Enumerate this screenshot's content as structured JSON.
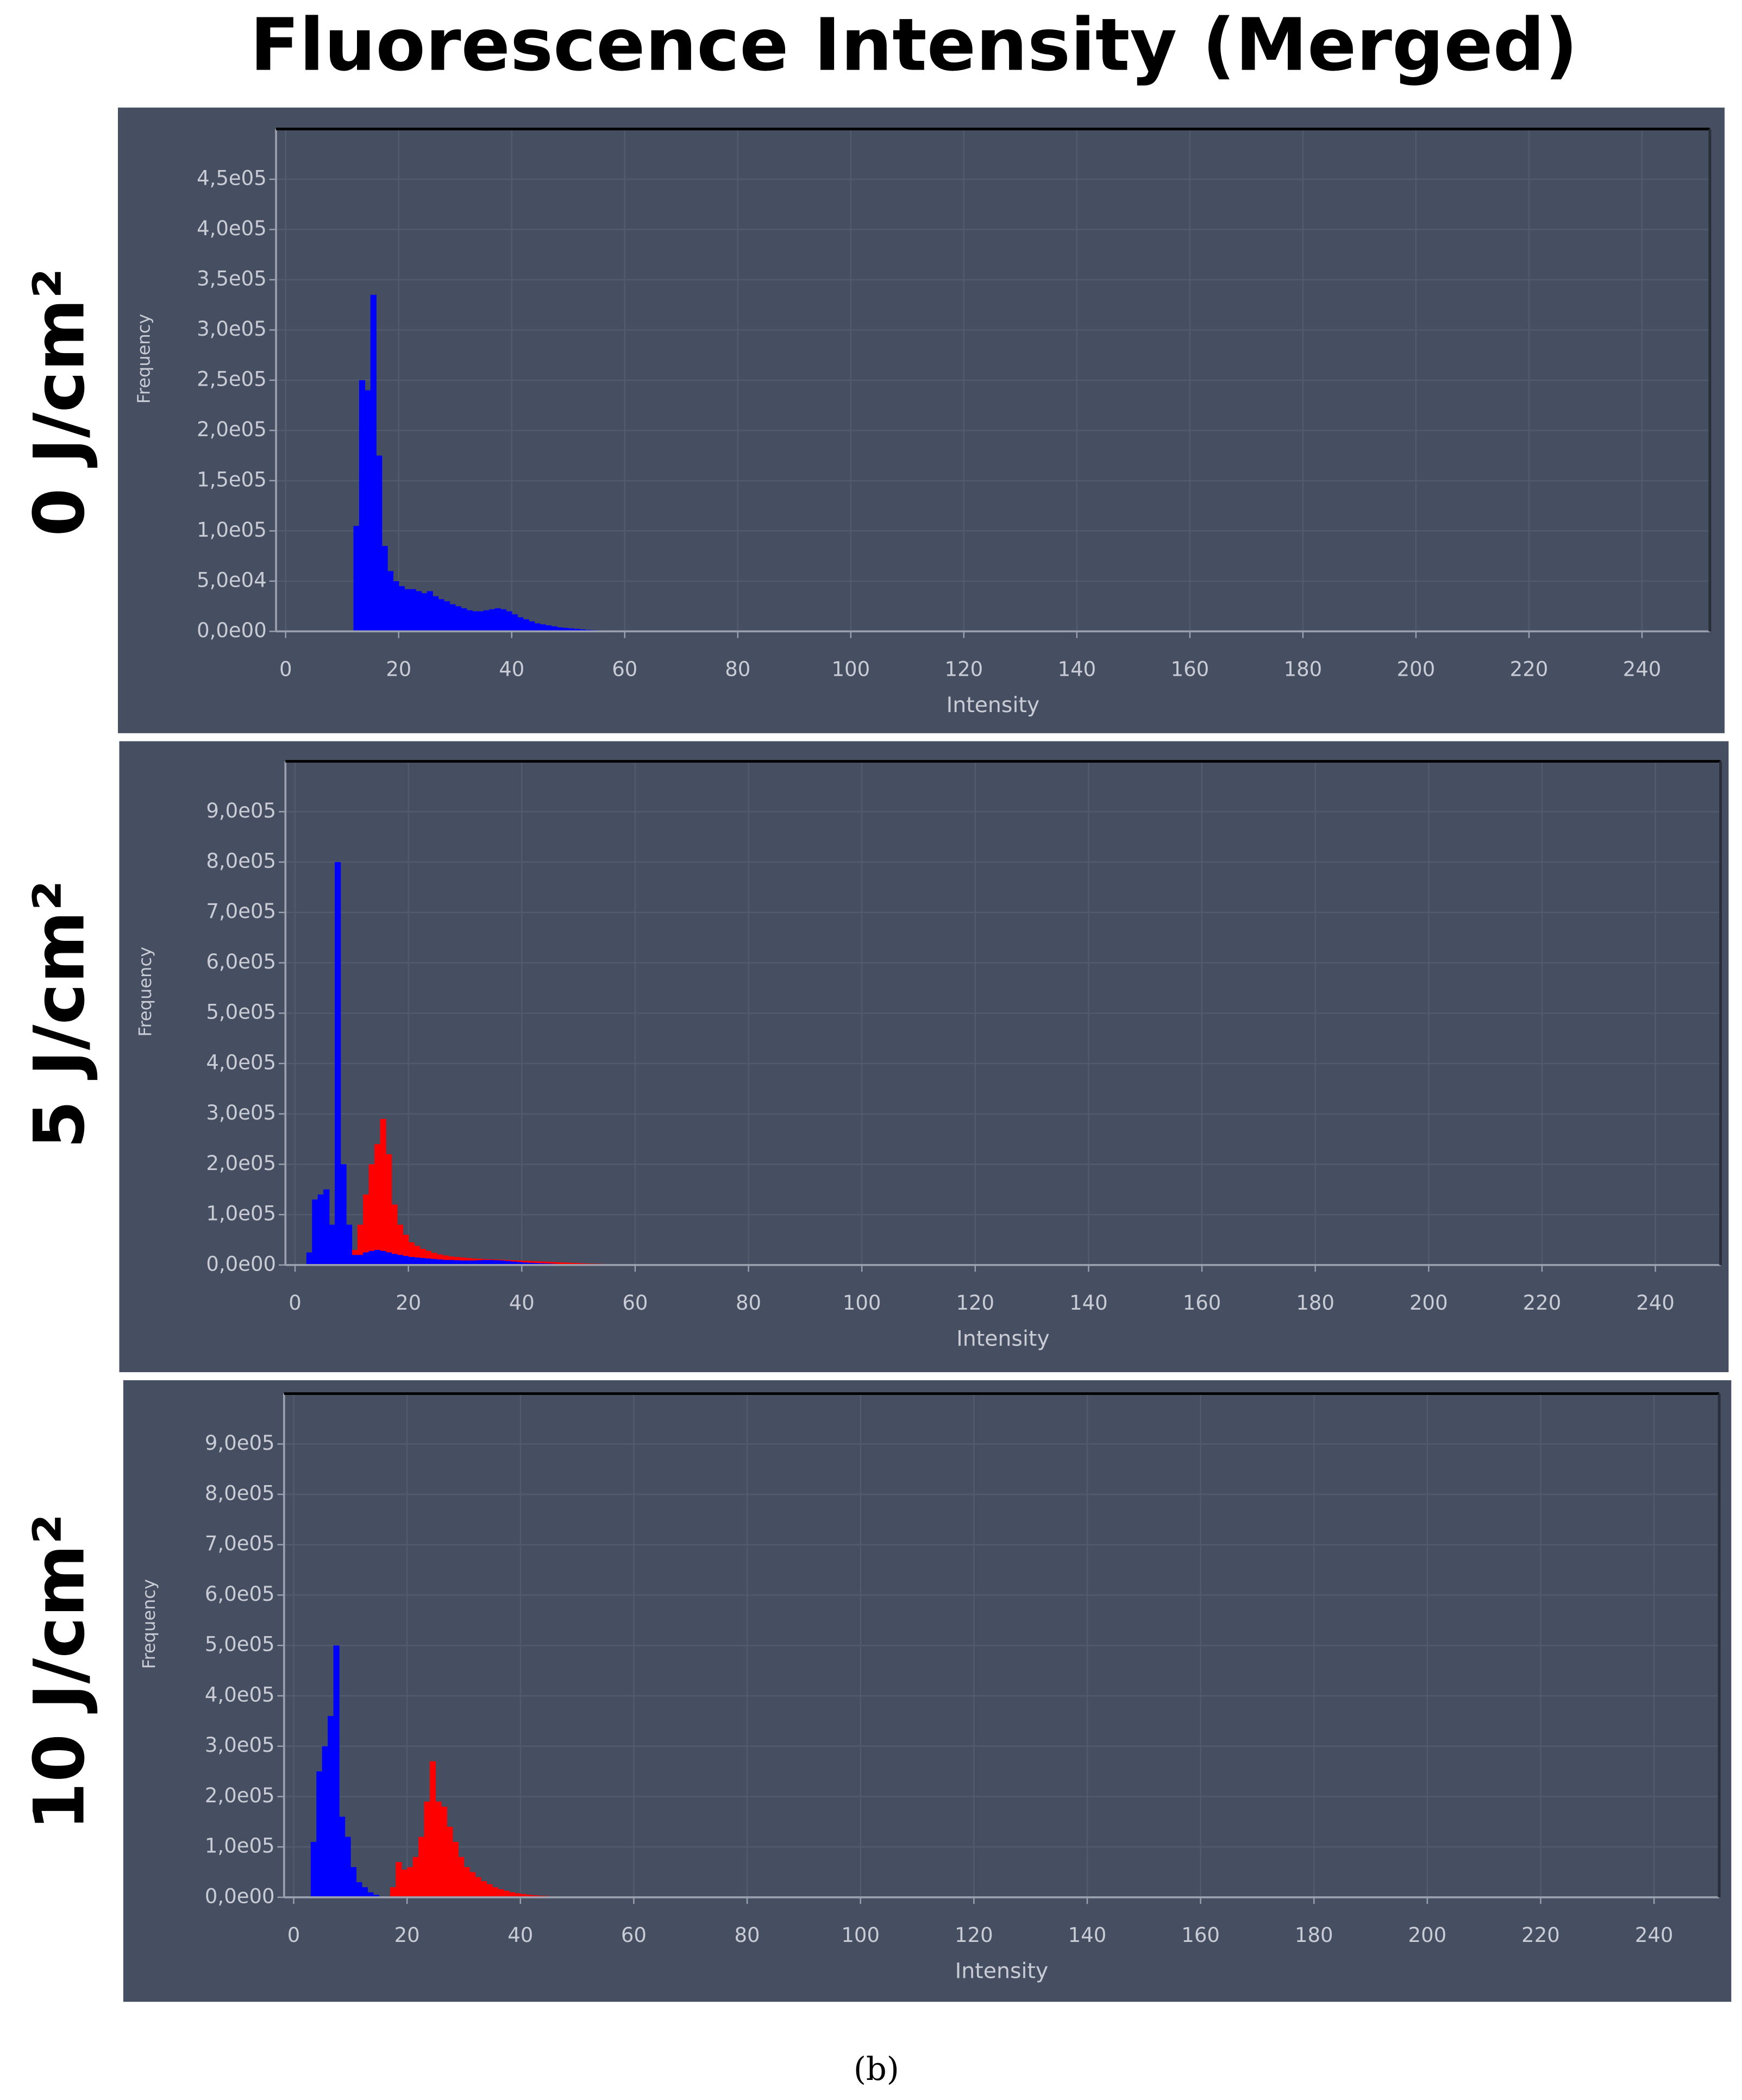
{
  "title": "Fluorescence Intensity (Merged)",
  "caption": "(b)",
  "chart_data": [
    {
      "type": "histogram",
      "label": "0 J/cm²",
      "xlabel": "Intensity",
      "ylabel": "Frequency",
      "grid": true,
      "xlim": [
        -1.7,
        252
      ],
      "ylim": [
        0,
        500000
      ],
      "xticks": [
        0,
        20,
        40,
        60,
        80,
        100,
        120,
        140,
        160,
        180,
        200,
        220,
        240
      ],
      "yticks": [
        {
          "value": 0,
          "label": "0,0e00"
        },
        {
          "value": 50000,
          "label": "5,0e04"
        },
        {
          "value": 100000,
          "label": "1,0e05"
        },
        {
          "value": 150000,
          "label": "1,5e05"
        },
        {
          "value": 200000,
          "label": "2,0e05"
        },
        {
          "value": 250000,
          "label": "2,5e05"
        },
        {
          "value": 300000,
          "label": "3,0e05"
        },
        {
          "value": 350000,
          "label": "3,5e05"
        },
        {
          "value": 400000,
          "label": "4,0e05"
        },
        {
          "value": 450000,
          "label": "4,5e05"
        }
      ],
      "bins": [
        12,
        13,
        14,
        15,
        16,
        17,
        18,
        19,
        20,
        21,
        22,
        23,
        24,
        25,
        26,
        27,
        28,
        29,
        30,
        31,
        32,
        33,
        34,
        35,
        36,
        37,
        38,
        39,
        40,
        41,
        42,
        43,
        44,
        45,
        46,
        47,
        48,
        49,
        50,
        51,
        52,
        53,
        54,
        55,
        56,
        57,
        58,
        59,
        60,
        61
      ],
      "series": [
        {
          "color": "#0000ff",
          "values": [
            105000,
            250000,
            240000,
            335000,
            175000,
            85000,
            60000,
            50000,
            45000,
            42000,
            42000,
            40000,
            38000,
            40000,
            35000,
            32000,
            30000,
            27000,
            25000,
            23000,
            21000,
            20000,
            20000,
            21000,
            22000,
            23000,
            22000,
            20000,
            17000,
            14000,
            12000,
            10000,
            8000,
            7000,
            6000,
            5000,
            4000,
            3500,
            3000,
            2500,
            2000,
            1500,
            1200,
            1000,
            800,
            600,
            500,
            400,
            300
          ]
        }
      ]
    },
    {
      "type": "histogram",
      "label": "5 J/cm²",
      "xlabel": "Intensity",
      "ylabel": "Frequency",
      "grid": true,
      "xlim": [
        -1.7,
        251.5
      ],
      "ylim": [
        0,
        1000000
      ],
      "xticks": [
        0,
        20,
        40,
        60,
        80,
        100,
        120,
        140,
        160,
        180,
        200,
        220,
        240
      ],
      "yticks": [
        {
          "value": 0,
          "label": "0,0e00"
        },
        {
          "value": 100000,
          "label": "1,0e05"
        },
        {
          "value": 200000,
          "label": "2,0e05"
        },
        {
          "value": 300000,
          "label": "3,0e05"
        },
        {
          "value": 400000,
          "label": "4,0e05"
        },
        {
          "value": 500000,
          "label": "5,0e05"
        },
        {
          "value": 600000,
          "label": "6,0e05"
        },
        {
          "value": 700000,
          "label": "7,0e05"
        },
        {
          "value": 800000,
          "label": "8,0e05"
        },
        {
          "value": 900000,
          "label": "9,0e05"
        }
      ],
      "bins": [
        2,
        3,
        4,
        5,
        6,
        7,
        8,
        9,
        10,
        11,
        12,
        13,
        14,
        15,
        16,
        17,
        18,
        19,
        20,
        21,
        22,
        23,
        24,
        25,
        26,
        27,
        28,
        29,
        30,
        31,
        32,
        33,
        34,
        35,
        36,
        37,
        38,
        39,
        40,
        41,
        42,
        43,
        44,
        45,
        46,
        47,
        48,
        49,
        50,
        51,
        52,
        53,
        54,
        55,
        56,
        57,
        58,
        59,
        60,
        61
      ],
      "series": [
        {
          "color": "#ff0000",
          "values": [
            0,
            0,
            0,
            0,
            0,
            0,
            0,
            0,
            30000,
            80000,
            140000,
            200000,
            240000,
            290000,
            220000,
            120000,
            80000,
            60000,
            45000,
            38000,
            32000,
            28000,
            24000,
            21000,
            19000,
            17000,
            16000,
            15000,
            14000,
            13000,
            12500,
            12000,
            11500,
            11000,
            10500,
            10000,
            9500,
            9000,
            8500,
            8000,
            7500,
            7000,
            6500,
            6000,
            5500,
            5000,
            4500,
            4000,
            3500,
            3000,
            2700,
            2400,
            2100,
            1800,
            1500,
            1200,
            900,
            600,
            300
          ]
        },
        {
          "color": "#0000ff",
          "values": [
            25000,
            130000,
            140000,
            150000,
            80000,
            800000,
            200000,
            80000,
            20000,
            20000,
            25000,
            28000,
            30000,
            28000,
            25000,
            22000,
            20000,
            18000,
            16000,
            15000,
            14000,
            13000,
            12000,
            11000,
            10000,
            10000,
            9500,
            9000,
            9000,
            9000,
            9500,
            10000,
            10000,
            9500,
            9000,
            8000,
            7000,
            6000,
            5000,
            4500,
            4000,
            3500,
            3000,
            2500,
            2000,
            1800,
            1500,
            1200,
            1000,
            900,
            800,
            700,
            600,
            500,
            400,
            300,
            200,
            100,
            100
          ]
        }
      ]
    },
    {
      "type": "histogram",
      "label": "10 J/cm²",
      "xlabel": "Intensity",
      "ylabel": "Frequency",
      "grid": true,
      "xlim": [
        -1.7,
        251.5
      ],
      "ylim": [
        0,
        1000000
      ],
      "xticks": [
        0,
        20,
        40,
        60,
        80,
        100,
        120,
        140,
        160,
        180,
        200,
        220,
        240
      ],
      "yticks": [
        {
          "value": 0,
          "label": "0,0e00"
        },
        {
          "value": 100000,
          "label": "1,0e05"
        },
        {
          "value": 200000,
          "label": "2,0e05"
        },
        {
          "value": 300000,
          "label": "3,0e05"
        },
        {
          "value": 400000,
          "label": "4,0e05"
        },
        {
          "value": 500000,
          "label": "5,0e05"
        },
        {
          "value": 600000,
          "label": "6,0e05"
        },
        {
          "value": 700000,
          "label": "7,0e05"
        },
        {
          "value": 800000,
          "label": "8,0e05"
        },
        {
          "value": 900000,
          "label": "9,0e05"
        }
      ],
      "bins": [
        3,
        4,
        5,
        6,
        7,
        8,
        9,
        10,
        11,
        12,
        13,
        14,
        15,
        16,
        17,
        18,
        19,
        20,
        21,
        22,
        23,
        24,
        25,
        26,
        27,
        28,
        29,
        30,
        31,
        32,
        33,
        34,
        35,
        36,
        37,
        38,
        39,
        40,
        41,
        42,
        43,
        44,
        45,
        46,
        47,
        48,
        49,
        50,
        51,
        52,
        53,
        54,
        55,
        56,
        57,
        58,
        59,
        60,
        61
      ],
      "series": [
        {
          "color": "#0000ff",
          "values": [
            110000,
            250000,
            300000,
            360000,
            500000,
            160000,
            120000,
            60000,
            30000,
            20000,
            10000,
            5000,
            2000,
            1000,
            500,
            0,
            0,
            0,
            0,
            0,
            0,
            0,
            0,
            0,
            0,
            0,
            0,
            0,
            0,
            0,
            0,
            0,
            0,
            0,
            0,
            0,
            0,
            0,
            0,
            0,
            0,
            0,
            0,
            0,
            0,
            0,
            0,
            0,
            0,
            0,
            0,
            0,
            0,
            0,
            0,
            0,
            0,
            0
          ]
        },
        {
          "color": "#ff0000",
          "values": [
            0,
            0,
            0,
            0,
            0,
            0,
            0,
            0,
            0,
            0,
            0,
            0,
            0,
            0,
            20000,
            70000,
            55000,
            60000,
            80000,
            120000,
            190000,
            270000,
            190000,
            180000,
            140000,
            110000,
            80000,
            60000,
            50000,
            40000,
            32000,
            26000,
            20000,
            16000,
            13000,
            10000,
            8000,
            6500,
            5000,
            4000,
            3200,
            2600,
            2000,
            1600,
            1300,
            1000,
            800,
            600,
            500,
            450,
            400,
            350,
            300,
            250,
            200,
            150,
            100,
            50
          ]
        }
      ]
    }
  ]
}
